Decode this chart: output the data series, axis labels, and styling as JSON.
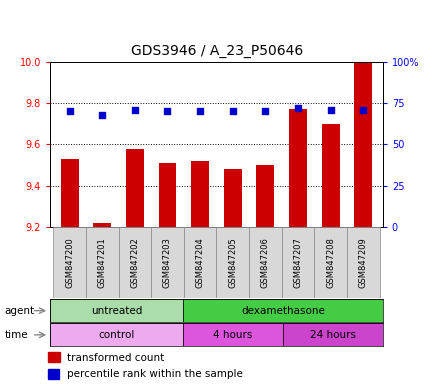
{
  "title": "GDS3946 / A_23_P50646",
  "samples": [
    "GSM847200",
    "GSM847201",
    "GSM847202",
    "GSM847203",
    "GSM847204",
    "GSM847205",
    "GSM847206",
    "GSM847207",
    "GSM847208",
    "GSM847209"
  ],
  "transformed_count": [
    9.53,
    9.22,
    9.58,
    9.51,
    9.52,
    9.48,
    9.5,
    9.77,
    9.7,
    10.0
  ],
  "percentile_rank": [
    70,
    68,
    71,
    70,
    70,
    70,
    70,
    72,
    71,
    71
  ],
  "ylim_left": [
    9.2,
    10.0
  ],
  "ylim_right": [
    0,
    100
  ],
  "yticks_left": [
    9.2,
    9.4,
    9.6,
    9.8,
    10.0
  ],
  "yticks_right": [
    0,
    25,
    50,
    75,
    100
  ],
  "ytick_labels_right": [
    "0",
    "25",
    "50",
    "75",
    "100%"
  ],
  "bar_color": "#cc0000",
  "dot_color": "#0000cc",
  "agent_groups": [
    {
      "label": "untreated",
      "start": 0,
      "end": 4,
      "color": "#aaddaa"
    },
    {
      "label": "dexamethasone",
      "start": 4,
      "end": 10,
      "color": "#44cc44"
    }
  ],
  "time_groups": [
    {
      "label": "control",
      "start": 0,
      "end": 4,
      "color": "#eeaaee"
    },
    {
      "label": "4 hours",
      "start": 4,
      "end": 7,
      "color": "#dd55dd"
    },
    {
      "label": "24 hours",
      "start": 7,
      "end": 10,
      "color": "#cc44cc"
    }
  ],
  "legend_bar_label": "transformed count",
  "legend_dot_label": "percentile rank within the sample",
  "title_fontsize": 10,
  "tick_fontsize": 7,
  "sample_fontsize": 6,
  "annot_fontsize": 7.5,
  "legend_fontsize": 7.5
}
